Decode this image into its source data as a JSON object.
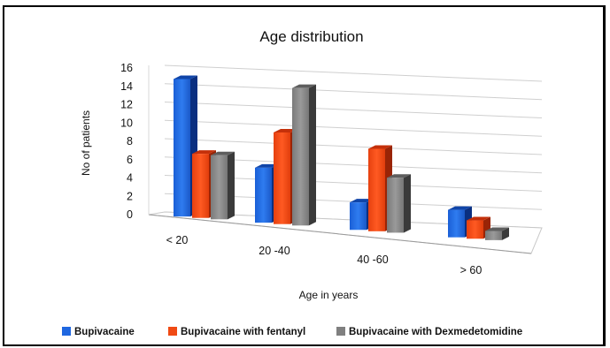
{
  "chart_data": {
    "type": "bar",
    "title": "Age distribution",
    "xlabel": "Age in years",
    "ylabel": "No of patients",
    "categories": [
      "< 20",
      "20 -40",
      "40 -60",
      "> 60"
    ],
    "ylim": [
      0,
      16
    ],
    "yticks": [
      0,
      2,
      4,
      6,
      8,
      10,
      12,
      14,
      16
    ],
    "grid": true,
    "legend_position": "bottom",
    "series": [
      {
        "name": "Bupivacaine",
        "color": "#1F67E0",
        "values": [
          15,
          6,
          3,
          3
        ]
      },
      {
        "name": "Bupivacaine with fentanyl",
        "color": "#F04A14",
        "values": [
          7,
          10,
          9,
          2
        ]
      },
      {
        "name": "Bupivacaine with Dexmedetomidine",
        "color": "#808080",
        "values": [
          7,
          15,
          6,
          1
        ]
      }
    ]
  }
}
